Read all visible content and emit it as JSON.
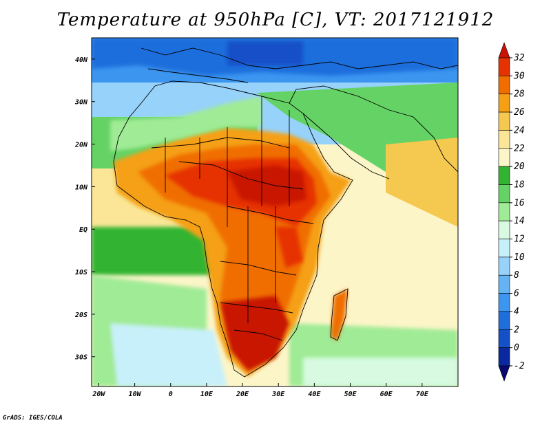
{
  "title": "Temperature at 950hPa [C], VT: 2017121912",
  "credit": "GrADS: IGES/COLA",
  "map": {
    "lon_range": [
      -22,
      80
    ],
    "lat_range": [
      -37,
      45
    ],
    "lon_ticks": [
      "20W",
      "10W",
      "0",
      "10E",
      "20E",
      "30E",
      "40E",
      "50E",
      "60E",
      "70E"
    ],
    "lat_ticks": [
      "40N",
      "30N",
      "20N",
      "10N",
      "EQ",
      "10S",
      "20S",
      "30S"
    ]
  },
  "colorbar": {
    "levels": [
      "32",
      "30",
      "28",
      "26",
      "24",
      "22",
      "20",
      "18",
      "16",
      "14",
      "12",
      "10",
      "8",
      "6",
      "4",
      "2",
      "0",
      "-2"
    ],
    "colors": [
      "#c81400",
      "#e63200",
      "#f06e00",
      "#f5a014",
      "#f5c850",
      "#fae696",
      "#fcf5c8",
      "#32b432",
      "#64d264",
      "#a0eb96",
      "#d7fae1",
      "#c8f0fa",
      "#96d2fa",
      "#64b4f5",
      "#3c96f0",
      "#1e6edc",
      "#1450c8",
      "#0a28a0",
      "#0a0a6e"
    ]
  }
}
